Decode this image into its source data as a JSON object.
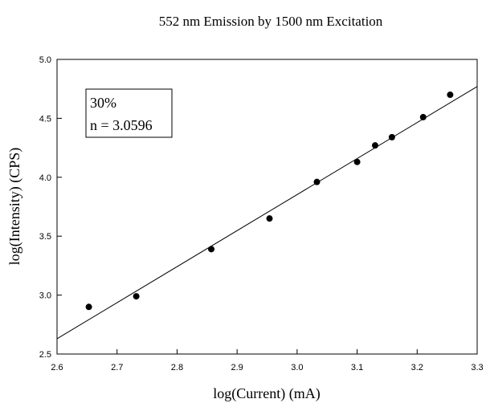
{
  "chart_data": {
    "type": "scatter",
    "title": "552 nm Emission by 1500 nm Excitation",
    "xlabel": "log(Current) (mA)",
    "ylabel": "log(Intensity) (CPS)",
    "xlim": [
      2.6,
      3.3
    ],
    "ylim": [
      2.5,
      5.0
    ],
    "xticks": [
      "2.6",
      "2.7",
      "2.8",
      "2.9",
      "3.0",
      "3.1",
      "3.2",
      "3.3"
    ],
    "yticks": [
      "2.5",
      "3.0",
      "3.5",
      "4.0",
      "4.5",
      "5.0"
    ],
    "grid": false,
    "points": [
      {
        "x": 2.653,
        "y": 2.9
      },
      {
        "x": 2.732,
        "y": 2.99
      },
      {
        "x": 2.857,
        "y": 3.39
      },
      {
        "x": 2.954,
        "y": 3.65
      },
      {
        "x": 3.033,
        "y": 3.96
      },
      {
        "x": 3.1,
        "y": 4.13
      },
      {
        "x": 3.13,
        "y": 4.27
      },
      {
        "x": 3.158,
        "y": 4.34
      },
      {
        "x": 3.21,
        "y": 4.51
      },
      {
        "x": 3.255,
        "y": 4.7
      }
    ],
    "fit_line": {
      "x": [
        2.6,
        3.3
      ],
      "y": [
        2.63,
        4.77
      ]
    },
    "annotation": {
      "line1": "30%",
      "line2": "n = 3.0596"
    }
  }
}
